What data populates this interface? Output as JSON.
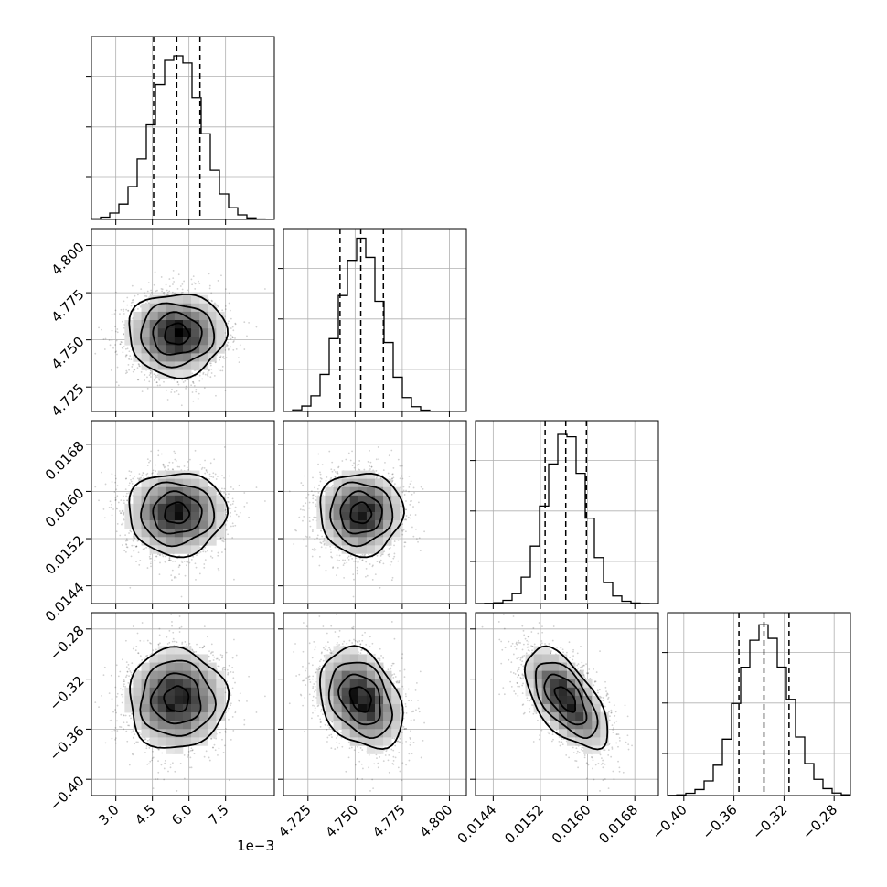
{
  "chart_data": {
    "type": "corner",
    "title": "",
    "parameters": [
      {
        "mean": 0.0055,
        "sd": 0.001,
        "range": [
          0.002,
          0.0095
        ],
        "ticks": [
          0.003,
          0.0045,
          0.006,
          0.0075
        ],
        "tick_labels": [
          "3.0",
          "4.5",
          "6.0",
          "7.5"
        ],
        "quantiles": [
          0.00455,
          0.0055,
          0.00645
        ],
        "offset_text": "1e−3"
      },
      {
        "mean": 4.753,
        "sd": 0.011,
        "range": [
          4.712,
          4.809
        ],
        "ticks": [
          4.725,
          4.75,
          4.775,
          4.8
        ],
        "tick_labels": [
          "4.725",
          "4.750",
          "4.775",
          "4.800"
        ],
        "quantiles": [
          4.742,
          4.753,
          4.765
        ],
        "offset_text": ""
      },
      {
        "mean": 0.01563,
        "sd": 0.00035,
        "range": [
          0.0141,
          0.0172
        ],
        "ticks": [
          0.0144,
          0.0152,
          0.016,
          0.0168
        ],
        "tick_labels": [
          "0.0144",
          "0.0152",
          "0.0160",
          "0.0168"
        ],
        "quantiles": [
          0.01528,
          0.01563,
          0.01598
        ],
        "offset_text": ""
      },
      {
        "mean": -0.336,
        "sd": 0.02,
        "range": [
          -0.413,
          -0.267
        ],
        "ticks": [
          -0.4,
          -0.36,
          -0.32,
          -0.28
        ],
        "tick_labels": [
          "−0.40",
          "−0.36",
          "−0.32",
          "−0.28"
        ],
        "quantiles": [
          -0.356,
          -0.336,
          -0.316
        ],
        "offset_text": ""
      }
    ],
    "correlations": [
      [
        1.0,
        0.0,
        0.0,
        0.0
      ],
      [
        0.0,
        1.0,
        0.0,
        -0.3
      ],
      [
        0.0,
        0.0,
        1.0,
        -0.6
      ],
      [
        0.0,
        -0.3,
        -0.6,
        1.0
      ]
    ],
    "histogram_bins": 20,
    "contour_levels_sigma": [
      0.5,
      1.0,
      1.5,
      2.0
    ],
    "grid": true,
    "samples_shown": 2500
  }
}
